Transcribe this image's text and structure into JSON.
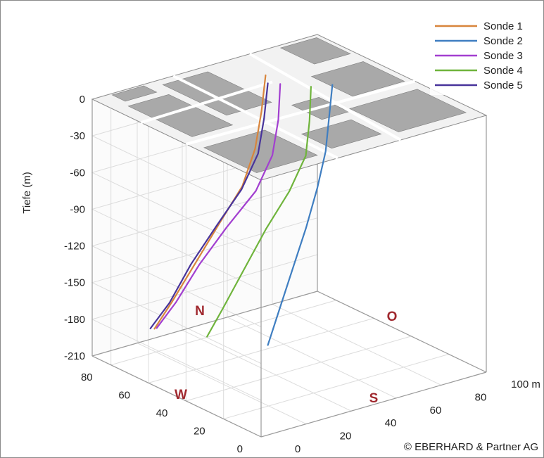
{
  "chart_data": {
    "type": "line3d",
    "zlabel": "Tiefe (m)",
    "z_ticks": [
      "0",
      "-30",
      "-60",
      "-90",
      "-120",
      "-150",
      "-180",
      "-210"
    ],
    "zlim": [
      -210,
      0
    ],
    "x_ticks": [
      "0",
      "20",
      "40",
      "60",
      "80",
      "100 m"
    ],
    "y_ticks": [
      "0",
      "20",
      "40",
      "60",
      "80"
    ],
    "xlim": [
      0,
      100
    ],
    "ylim": [
      0,
      90
    ],
    "compass": {
      "north": "N",
      "east": "O",
      "south": "S",
      "west": "W"
    },
    "legend_position": "top-right",
    "surface": "map",
    "grid": true,
    "series": [
      {
        "name": "Sonde 1",
        "color": "#d8853c",
        "points": [
          [
            62,
            72,
            0
          ],
          [
            61,
            73,
            -30
          ],
          [
            59,
            74,
            -60
          ],
          [
            55,
            76,
            -90
          ],
          [
            48,
            80,
            -120
          ],
          [
            40,
            83,
            -150
          ],
          [
            32,
            86,
            -180
          ],
          [
            26,
            88,
            -200
          ]
        ]
      },
      {
        "name": "Sonde 2",
        "color": "#3f7ec1",
        "points": [
          [
            75,
            52,
            0
          ],
          [
            76,
            55,
            -30
          ],
          [
            77,
            58,
            -60
          ],
          [
            75,
            60,
            -90
          ],
          [
            70,
            60,
            -120
          ],
          [
            62,
            58,
            -150
          ],
          [
            54,
            56,
            -180
          ],
          [
            48,
            54,
            -200
          ]
        ]
      },
      {
        "name": "Sonde 3",
        "color": "#a23fd0",
        "points": [
          [
            61,
            63,
            0
          ],
          [
            61,
            64,
            -30
          ],
          [
            60,
            66,
            -60
          ],
          [
            56,
            70,
            -90
          ],
          [
            48,
            76,
            -120
          ],
          [
            40,
            81,
            -150
          ],
          [
            33,
            85,
            -180
          ],
          [
            27,
            88,
            -200
          ]
        ]
      },
      {
        "name": "Sonde 4",
        "color": "#6fb43c",
        "points": [
          [
            68,
            55,
            0
          ],
          [
            69,
            57,
            -30
          ],
          [
            69,
            59,
            -60
          ],
          [
            65,
            63,
            -90
          ],
          [
            58,
            67,
            -120
          ],
          [
            50,
            69,
            -150
          ],
          [
            42,
            71,
            -180
          ],
          [
            36,
            72,
            -200
          ]
        ]
      },
      {
        "name": "Sonde 5",
        "color": "#48349b",
        "points": [
          [
            58,
            66,
            0
          ],
          [
            58,
            68,
            -30
          ],
          [
            57,
            70,
            -60
          ],
          [
            53,
            74,
            -90
          ],
          [
            46,
            79,
            -120
          ],
          [
            38,
            83,
            -150
          ],
          [
            31,
            86,
            -180
          ],
          [
            25,
            89,
            -200
          ]
        ]
      }
    ]
  },
  "credit": "© EBERHARD & Partner AG"
}
